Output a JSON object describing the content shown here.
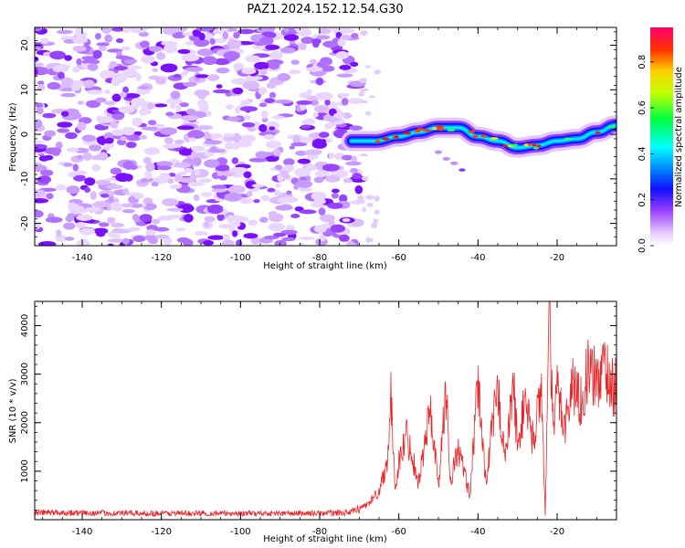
{
  "title": "PAZ1.2024.152.12.54.G30",
  "chart_data": [
    {
      "type": "heatmap",
      "xlabel": "Height of straight line (km)",
      "ylabel": "Frequency (Hz)",
      "xlim": [
        -152,
        -5
      ],
      "ylim": [
        -25,
        24
      ],
      "xticks": [
        -140,
        -120,
        -100,
        -80,
        -60,
        -40,
        -20
      ],
      "yticks": [
        -20,
        -10,
        0,
        10,
        20
      ],
      "colorbar": {
        "label": "Normalized spectral amplitude",
        "range": [
          0,
          0.95
        ],
        "ticks": [
          0.0,
          0.2,
          0.4,
          0.6,
          0.8
        ],
        "colormap": "rainbow"
      },
      "signal_track": {
        "x": [
          -72,
          -66,
          -60,
          -55,
          -50,
          -45,
          -40,
          -35,
          -30,
          -25,
          -20,
          -15,
          -10,
          -5
        ],
        "freq_hz": [
          -1.5,
          -1.5,
          -0.5,
          0.5,
          1.5,
          1.5,
          -0.5,
          -1.5,
          -3.0,
          -2.5,
          -1.5,
          -1.0,
          0.5,
          2.0
        ]
      },
      "noise_region_x": [
        -152,
        -70
      ]
    },
    {
      "type": "line",
      "xlabel": "Height of straight line (km)",
      "ylabel": "SNR (10 * v/v)",
      "xlim": [
        -152,
        -5
      ],
      "ylim": [
        0,
        4500
      ],
      "xticks": [
        -140,
        -120,
        -100,
        -80,
        -60,
        -40,
        -20
      ],
      "yticks": [
        1000,
        2000,
        3000,
        4000
      ],
      "color": "#e8262a",
      "series": [
        {
          "x": [
            -152,
            -140,
            -120,
            -100,
            -80,
            -72,
            -68,
            -65,
            -63,
            -62,
            -61,
            -60,
            -58,
            -55,
            -52,
            -50,
            -48,
            -47,
            -45,
            -42,
            -40,
            -38,
            -36,
            -35,
            -33,
            -31,
            -30,
            -28,
            -26,
            -24,
            -23,
            -22,
            -21,
            -20,
            -18,
            -16,
            -14,
            -12,
            -10,
            -8,
            -6
          ],
          "y": [
            150,
            140,
            130,
            130,
            130,
            150,
            320,
            600,
            1200,
            2550,
            700,
            1200,
            1800,
            800,
            2350,
            700,
            2800,
            800,
            1500,
            500,
            2900,
            800,
            2200,
            2700,
            1300,
            2900,
            1500,
            2600,
            1600,
            2900,
            100,
            4500,
            1800,
            2800,
            2000,
            2900,
            2500,
            3200,
            2900,
            3300,
            2800
          ]
        }
      ]
    }
  ]
}
